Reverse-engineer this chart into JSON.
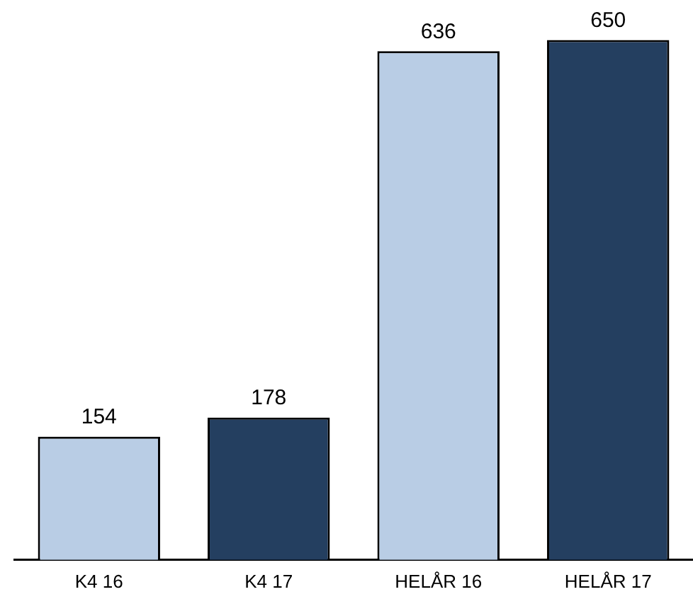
{
  "chart_data": {
    "type": "bar",
    "categories": [
      "K4 16",
      "K4 17",
      "HELÅR 16",
      "HELÅR 17"
    ],
    "values": [
      154,
      178,
      636,
      650
    ],
    "colors": [
      "#b9cde5",
      "#243f60",
      "#b9cde5",
      "#243f60"
    ],
    "data_labels": true,
    "grid": false,
    "legend": false,
    "tick_labels": "x"
  }
}
